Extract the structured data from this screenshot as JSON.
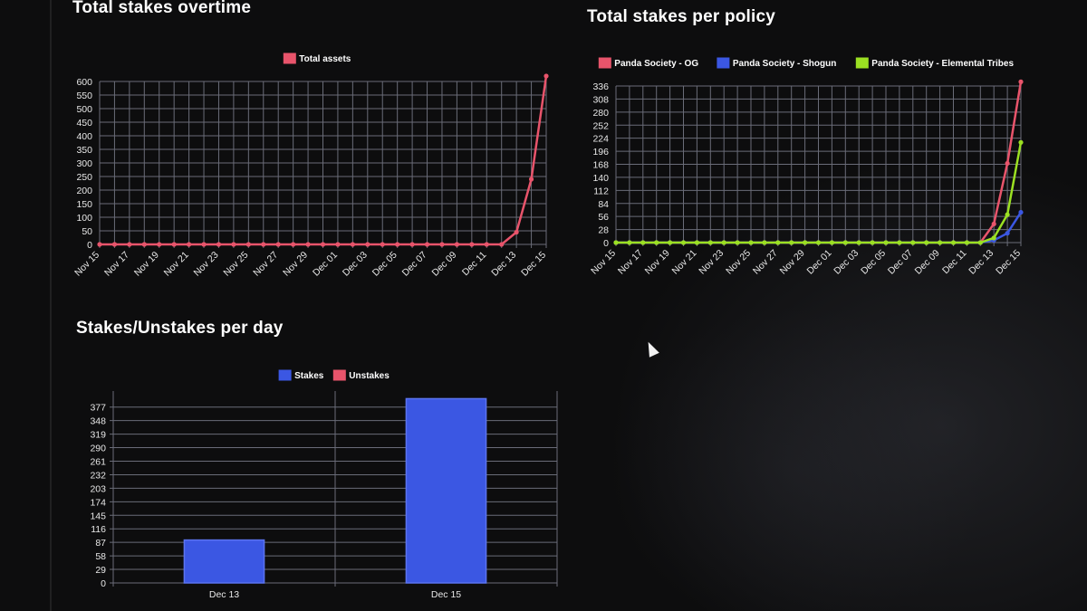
{
  "colors": {
    "background": "#0d0d0e",
    "grid": "#6a6c78",
    "red": "#e8546b",
    "blue": "#3b57e3",
    "green": "#9be022",
    "text": "#ffffff"
  },
  "charts": {
    "overtime": {
      "title": "Total stakes overtime"
    },
    "policy": {
      "title": "Total stakes per policy"
    },
    "daily": {
      "title": "Stakes/Unstakes per day"
    }
  },
  "chart_data": [
    {
      "type": "line",
      "title": "Total stakes overtime",
      "x": [
        "Nov 15",
        "Nov 16",
        "Nov 17",
        "Nov 18",
        "Nov 19",
        "Nov 20",
        "Nov 21",
        "Nov 22",
        "Nov 23",
        "Nov 24",
        "Nov 25",
        "Nov 26",
        "Nov 27",
        "Nov 28",
        "Nov 29",
        "Nov 30",
        "Dec 01",
        "Dec 02",
        "Dec 03",
        "Dec 04",
        "Dec 05",
        "Dec 06",
        "Dec 07",
        "Dec 08",
        "Dec 09",
        "Dec 10",
        "Dec 11",
        "Dec 12",
        "Dec 13",
        "Dec 14",
        "Dec 15"
      ],
      "x_tick_labels": [
        "Nov 15",
        "Nov 17",
        "Nov 19",
        "Nov 21",
        "Nov 23",
        "Nov 25",
        "Nov 27",
        "Nov 29",
        "Dec 01",
        "Dec 03",
        "Dec 05",
        "Dec 07",
        "Dec 09",
        "Dec 11",
        "Dec 13",
        "Dec 15"
      ],
      "y_ticks": [
        0,
        50,
        100,
        150,
        200,
        250,
        300,
        350,
        400,
        450,
        500,
        550,
        600
      ],
      "ylim": [
        0,
        600
      ],
      "series": [
        {
          "name": "Total assets",
          "color": "#e8546b",
          "values": [
            0,
            0,
            0,
            0,
            0,
            0,
            0,
            0,
            0,
            0,
            0,
            0,
            0,
            0,
            0,
            0,
            0,
            0,
            0,
            0,
            0,
            0,
            0,
            0,
            0,
            0,
            0,
            0,
            45,
            240,
            620
          ]
        }
      ],
      "legend": "top-center",
      "grid": true
    },
    {
      "type": "line",
      "title": "Total stakes per policy",
      "x": [
        "Nov 15",
        "Nov 16",
        "Nov 17",
        "Nov 18",
        "Nov 19",
        "Nov 20",
        "Nov 21",
        "Nov 22",
        "Nov 23",
        "Nov 24",
        "Nov 25",
        "Nov 26",
        "Nov 27",
        "Nov 28",
        "Nov 29",
        "Nov 30",
        "Dec 01",
        "Dec 02",
        "Dec 03",
        "Dec 04",
        "Dec 05",
        "Dec 06",
        "Dec 07",
        "Dec 08",
        "Dec 09",
        "Dec 10",
        "Dec 11",
        "Dec 12",
        "Dec 13",
        "Dec 14",
        "Dec 15"
      ],
      "x_tick_labels": [
        "Nov 15",
        "Nov 17",
        "Nov 19",
        "Nov 21",
        "Nov 23",
        "Nov 25",
        "Nov 27",
        "Nov 29",
        "Dec 01",
        "Dec 03",
        "Dec 05",
        "Dec 07",
        "Dec 09",
        "Dec 11",
        "Dec 13",
        "Dec 15"
      ],
      "y_ticks": [
        0,
        28,
        56,
        84,
        112,
        140,
        168,
        196,
        224,
        252,
        280,
        308,
        336
      ],
      "ylim": [
        0,
        336
      ],
      "series": [
        {
          "name": "Panda Society - OG",
          "color": "#e8546b",
          "values": [
            0,
            0,
            0,
            0,
            0,
            0,
            0,
            0,
            0,
            0,
            0,
            0,
            0,
            0,
            0,
            0,
            0,
            0,
            0,
            0,
            0,
            0,
            0,
            0,
            0,
            0,
            0,
            0,
            40,
            170,
            345
          ]
        },
        {
          "name": "Panda Society - Shogun",
          "color": "#3b57e3",
          "values": [
            0,
            0,
            0,
            0,
            0,
            0,
            0,
            0,
            0,
            0,
            0,
            0,
            0,
            0,
            0,
            0,
            0,
            0,
            0,
            0,
            0,
            0,
            0,
            0,
            0,
            0,
            0,
            0,
            5,
            20,
            65
          ]
        },
        {
          "name": "Panda Society - Elemental Tribes",
          "color": "#9be022",
          "values": [
            0,
            0,
            0,
            0,
            0,
            0,
            0,
            0,
            0,
            0,
            0,
            0,
            0,
            0,
            0,
            0,
            0,
            0,
            0,
            0,
            0,
            0,
            0,
            0,
            0,
            0,
            0,
            0,
            10,
            60,
            215
          ]
        }
      ],
      "legend": "top-center",
      "grid": true
    },
    {
      "type": "bar",
      "title": "Stakes/Unstakes per day",
      "categories": [
        "Dec 13",
        "Dec 15"
      ],
      "y_ticks": [
        0,
        29,
        58,
        87,
        116,
        145,
        174,
        203,
        232,
        261,
        290,
        319,
        348,
        377
      ],
      "ylim": [
        0,
        377
      ],
      "series": [
        {
          "name": "Stakes",
          "color": "#3b57e3",
          "values": [
            92,
            395
          ]
        },
        {
          "name": "Unstakes",
          "color": "#e8546b",
          "values": [
            0,
            0
          ]
        }
      ],
      "legend": "top-center",
      "grid": true
    }
  ]
}
